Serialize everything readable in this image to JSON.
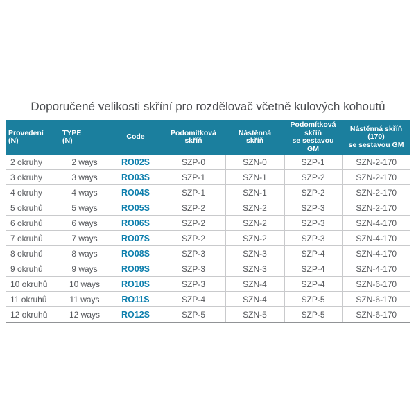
{
  "title": "Doporučené velikosti skříní pro rozdělovač včetně kulových kohoutů",
  "colors": {
    "header_bg": "#1b7f9e",
    "header_text": "#ffffff",
    "code_text": "#0d7fad",
    "body_text": "#55575b",
    "title_text": "#4a4c4f",
    "row_border": "#c9cacc",
    "bottom_border": "#919396"
  },
  "table": {
    "headers": [
      {
        "lines": [
          "Provedení",
          "(N)"
        ],
        "align": "left"
      },
      {
        "lines": [
          "TYPE",
          "(N)"
        ],
        "align": "left"
      },
      {
        "lines": [
          "Code"
        ],
        "align": "center"
      },
      {
        "lines": [
          "Podomítková",
          "skříň"
        ],
        "align": "center"
      },
      {
        "lines": [
          "Nástěnná",
          "skříň"
        ],
        "align": "center"
      },
      {
        "lines": [
          "Podomítková",
          "skříň",
          "se sestavou",
          "GM"
        ],
        "align": "center"
      },
      {
        "lines": [
          "Nástěnná skříň",
          "(170)",
          "se sestavou GM"
        ],
        "align": "center"
      }
    ],
    "rows": [
      [
        "2 okruhy",
        "2 ways",
        "RO02S",
        "SZP-0",
        "SZN-0",
        "SZP-1",
        "SZN-2-170"
      ],
      [
        "3 okruhy",
        "3 ways",
        "RO03S",
        "SZP-1",
        "SZN-1",
        "SZP-2",
        "SZN-2-170"
      ],
      [
        "4 okruhy",
        "4 ways",
        "RO04S",
        "SZP-1",
        "SZN-1",
        "SZP-2",
        "SZN-2-170"
      ],
      [
        "5 okruhů",
        "5 ways",
        "RO05S",
        "SZP-2",
        "SZN-2",
        "SZP-3",
        "SZN-2-170"
      ],
      [
        "6 okruhů",
        "6 ways",
        "RO06S",
        "SZP-2",
        "SZN-2",
        "SZP-3",
        "SZN-4-170"
      ],
      [
        "7 okruhů",
        "7 ways",
        "RO07S",
        "SZP-2",
        "SZN-2",
        "SZP-3",
        "SZN-4-170"
      ],
      [
        "8 okruhů",
        "8 ways",
        "RO08S",
        "SZP-3",
        "SZN-3",
        "SZP-4",
        "SZN-4-170"
      ],
      [
        "9 okruhů",
        "9 ways",
        "RO09S",
        "SZP-3",
        "SZN-3",
        "SZP-4",
        "SZN-4-170"
      ],
      [
        "10 okruhů",
        "10 ways",
        "RO10S",
        "SZP-3",
        "SZN-4",
        "SZP-4",
        "SZN-6-170"
      ],
      [
        "11 okruhů",
        "11 ways",
        "RO11S",
        "SZP-4",
        "SZN-4",
        "SZP-5",
        "SZN-6-170"
      ],
      [
        "12 okruhů",
        "12 ways",
        "RO12S",
        "SZP-5",
        "SZN-5",
        "SZP-5",
        "SZN-6-170"
      ]
    ]
  }
}
